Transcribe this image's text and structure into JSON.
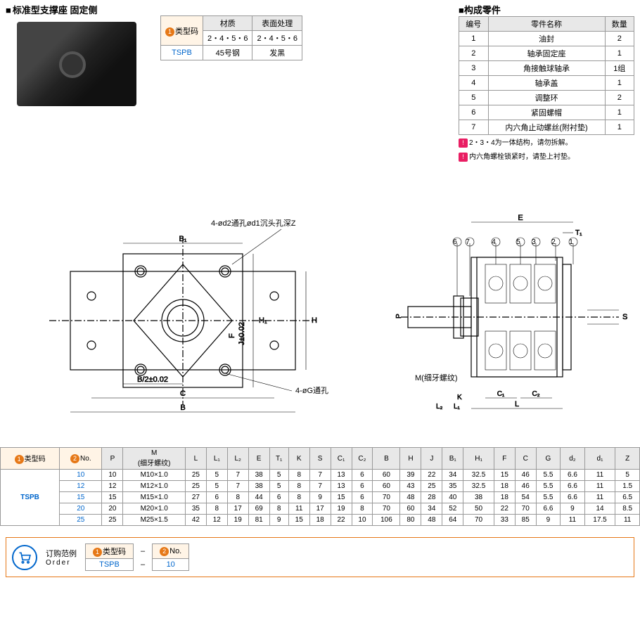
{
  "title_left": "标准型支撑座  固定侧",
  "title_right": "构成零件",
  "material_table": {
    "headers": [
      "类型码",
      "材质",
      "表面处理"
    ],
    "subheaders": [
      "",
      "2・4・5・6",
      "2・4・5・6"
    ],
    "row": [
      "TSPB",
      "45号钢",
      "发黑"
    ]
  },
  "parts_table": {
    "headers": [
      "编号",
      "零件名称",
      "数量"
    ],
    "rows": [
      [
        "1",
        "油封",
        "2"
      ],
      [
        "2",
        "轴承固定座",
        "1"
      ],
      [
        "3",
        "角接触球轴承",
        "1组"
      ],
      [
        "4",
        "轴承盖",
        "1"
      ],
      [
        "5",
        "调整环",
        "2"
      ],
      [
        "6",
        "紧固螺帽",
        "1"
      ],
      [
        "7",
        "内六角止动螺丝(附衬垫)",
        "1"
      ]
    ]
  },
  "notes": [
    "2・3・4为一体结构，请勿拆解。",
    "内六角螺栓锁紧时，请垫上衬垫。"
  ],
  "drawing_labels": {
    "hole_label1": "4-ød2通孔ød1沉头孔深Z",
    "hole_label2": "4-øG通孔",
    "thread_label": "M(细牙螺纹)",
    "dims": {
      "B": "B",
      "B1": "B₁",
      "C": "C",
      "H": "H",
      "H1": "H₁",
      "F": "F",
      "J": "J±0.02",
      "B2": "B/2±0.02",
      "E": "E",
      "T1": "T₁",
      "P": "P",
      "S": "S",
      "K": "K",
      "C1": "C₁",
      "C2": "C₂",
      "L": "L",
      "L1": "L₁",
      "L2": "L₂"
    },
    "callouts": [
      "6",
      "7",
      "4",
      "5",
      "3",
      "2",
      "1"
    ]
  },
  "spec_table": {
    "type_hdr": "类型码",
    "no_hdr": "No.",
    "headers": [
      "P",
      "M\n(细牙螺纹)",
      "L",
      "L₁",
      "L₂",
      "E",
      "T₁",
      "K",
      "S",
      "C₁",
      "C₂",
      "B",
      "H",
      "J",
      "B₁",
      "H₁",
      "F",
      "C",
      "G",
      "d₂",
      "d₁",
      "Z"
    ],
    "type_code": "TSPB",
    "rows": [
      {
        "no": "10",
        "v": [
          "10",
          "M10×1.0",
          "25",
          "5",
          "7",
          "38",
          "5",
          "8",
          "7",
          "13",
          "6",
          "60",
          "39",
          "22",
          "34",
          "32.5",
          "15",
          "46",
          "5.5",
          "6.6",
          "11",
          "5"
        ]
      },
      {
        "no": "12",
        "v": [
          "12",
          "M12×1.0",
          "25",
          "5",
          "7",
          "38",
          "5",
          "8",
          "7",
          "13",
          "6",
          "60",
          "43",
          "25",
          "35",
          "32.5",
          "18",
          "46",
          "5.5",
          "6.6",
          "11",
          "1.5"
        ]
      },
      {
        "no": "15",
        "v": [
          "15",
          "M15×1.0",
          "27",
          "6",
          "8",
          "44",
          "6",
          "8",
          "9",
          "15",
          "6",
          "70",
          "48",
          "28",
          "40",
          "38",
          "18",
          "54",
          "5.5",
          "6.6",
          "11",
          "6.5"
        ]
      },
      {
        "no": "20",
        "v": [
          "20",
          "M20×1.0",
          "35",
          "8",
          "17",
          "69",
          "8",
          "11",
          "17",
          "19",
          "8",
          "70",
          "60",
          "34",
          "52",
          "50",
          "22",
          "70",
          "6.6",
          "9",
          "14",
          "8.5"
        ]
      },
      {
        "no": "25",
        "v": [
          "25",
          "M25×1.5",
          "42",
          "12",
          "19",
          "81",
          "9",
          "15",
          "18",
          "22",
          "10",
          "106",
          "80",
          "48",
          "64",
          "70",
          "33",
          "85",
          "9",
          "11",
          "17.5",
          "11"
        ]
      }
    ]
  },
  "order": {
    "label_cn": "订购范例",
    "label_en": "Order",
    "type_hdr": "类型码",
    "no_hdr": "No.",
    "type_val": "TSPB",
    "no_val": "10",
    "sep": "–"
  },
  "colors": {
    "orange": "#e67817",
    "blue": "#0066cc",
    "pink": "#e91e63",
    "border": "#999999",
    "header_bg": "#e8e8e8"
  }
}
